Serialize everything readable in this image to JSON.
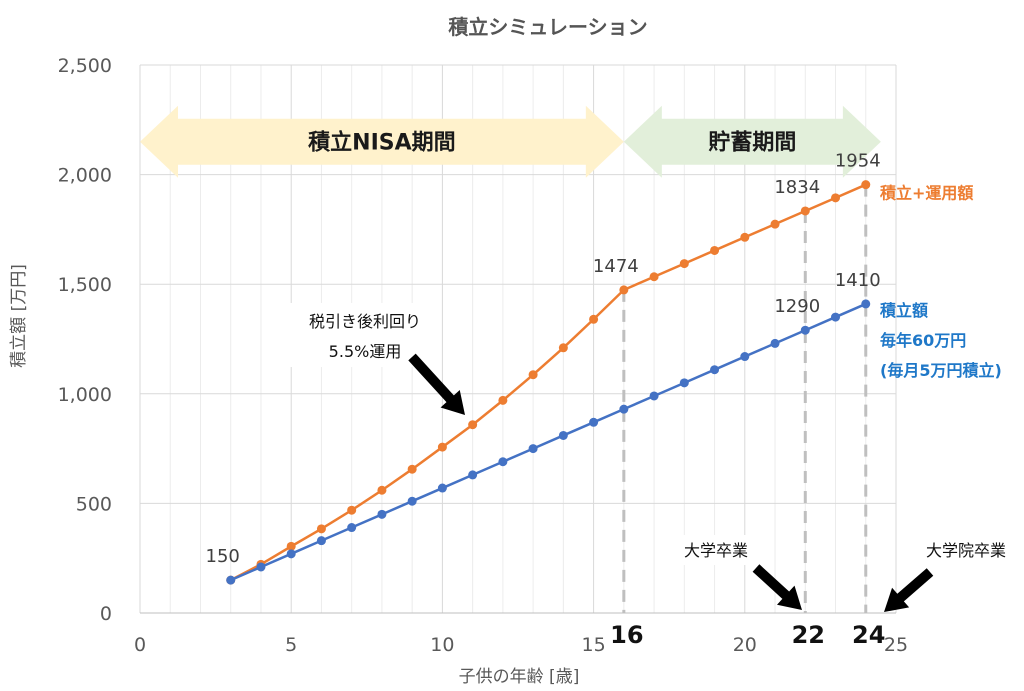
{
  "chart_data": {
    "type": "line",
    "title": "積立シミュレーション",
    "xlabel": "子供の年齢 [歳]",
    "ylabel": "積立額 [万円]",
    "xlim": [
      0,
      25
    ],
    "ylim": [
      0,
      2500
    ],
    "x_ticks": [
      0,
      5,
      10,
      15,
      20,
      25
    ],
    "y_ticks": [
      0,
      500,
      1000,
      1500,
      2000,
      2500
    ],
    "y_tick_labels": [
      "0",
      "500",
      "1,000",
      "1,500",
      "2,000",
      "2,500"
    ],
    "emphasized_x_ticks": [
      16,
      22,
      24
    ],
    "grid": true,
    "x": [
      3,
      4,
      5,
      6,
      7,
      8,
      9,
      10,
      11,
      12,
      13,
      14,
      15,
      16,
      17,
      18,
      19,
      20,
      21,
      22,
      23,
      24
    ],
    "series": [
      {
        "color": "#ED7D31",
        "values": [
          150,
          222,
          304,
          384,
          469,
          560,
          656,
          757,
          859,
          970,
          1087,
          1210,
          1340,
          1474,
          1534,
          1594,
          1654,
          1714,
          1774,
          1834,
          1894,
          1954
        ]
      },
      {
        "color": "#4472C4",
        "values": [
          150,
          210,
          270,
          330,
          390,
          450,
          510,
          570,
          630,
          690,
          750,
          810,
          870,
          930,
          990,
          1050,
          1110,
          1170,
          1230,
          1290,
          1350,
          1410
        ]
      }
    ],
    "data_labels": [
      {
        "x": 3,
        "y": 150,
        "text": "150"
      },
      {
        "x": 16,
        "y": 1474,
        "text": "1474"
      },
      {
        "x": 22,
        "y": 1834,
        "text": "1834"
      },
      {
        "x": 24,
        "y": 1954,
        "text": "1954"
      },
      {
        "x": 22,
        "y": 1290,
        "text": "1290"
      },
      {
        "x": 24,
        "y": 1410,
        "text": "1410"
      }
    ],
    "vertical_markers": [
      {
        "x": 16,
        "to": 1474
      },
      {
        "x": 22,
        "to": 1834
      },
      {
        "x": 24,
        "to": 1954
      }
    ],
    "bands": [
      {
        "label": "積立NISA期間",
        "from": 0,
        "to": 16,
        "color": "#FFF2CC"
      },
      {
        "label": "貯蓄期間",
        "from": 16,
        "to": 24.5,
        "color": "#E2EFDA"
      }
    ],
    "series_labels": {
      "orange": "積立+運用額",
      "blue": [
        "積立額",
        "毎年60万円",
        "(毎月5万円積立)"
      ]
    },
    "annotations": {
      "return_note": [
        "税引き後利回り",
        "5.5%運用"
      ],
      "graduation": "大学卒業",
      "grad_school": "大学院卒業"
    }
  }
}
